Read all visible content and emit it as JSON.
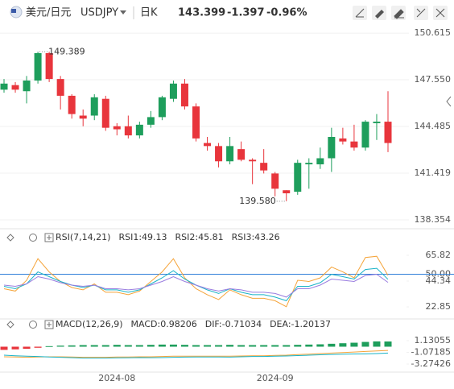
{
  "header": {
    "pair": "美元/日元",
    "symbol": "USDJPY",
    "period": "日K",
    "price": "143.399",
    "change": "-1.397",
    "change_pct": "-0.96%"
  },
  "chart_data": [
    {
      "type": "candlestick",
      "categories": [
        null,
        null,
        null,
        null,
        null,
        null,
        null,
        null,
        null,
        null,
        "2024-08",
        null,
        null,
        null,
        null,
        null,
        null,
        null,
        null,
        null,
        null,
        null,
        null,
        null,
        "2024-09",
        null,
        null,
        null,
        null,
        null,
        null,
        null,
        null,
        null,
        null
      ],
      "open": [
        146.9,
        147.2,
        146.8,
        147.5,
        149.3,
        147.6,
        146.5,
        145.2,
        145.2,
        146.3,
        144.5,
        144.5,
        143.9,
        144.6,
        145.1,
        146.3,
        147.3,
        145.8,
        143.4,
        143.2,
        142.2,
        143.0,
        142.3,
        142.1,
        141.4,
        140.3,
        140.2,
        142.0,
        142.0,
        142.4,
        143.7,
        143.5,
        143.1,
        144.7,
        144.8
      ],
      "high": [
        147.6,
        147.4,
        147.8,
        149.389,
        149.389,
        147.8,
        146.6,
        145.6,
        146.6,
        146.5,
        144.7,
        145.2,
        144.8,
        145.5,
        146.5,
        147.5,
        147.6,
        146.0,
        143.8,
        143.4,
        143.8,
        143.5,
        142.4,
        143.0,
        141.5,
        140.3,
        142.3,
        142.4,
        143.1,
        144.4,
        144.4,
        144.6,
        144.9,
        145.3,
        146.8
      ],
      "low": [
        146.7,
        146.7,
        146.0,
        147.3,
        147.4,
        145.6,
        145.0,
        144.5,
        144.9,
        144.2,
        143.9,
        143.7,
        143.7,
        144.4,
        144.9,
        146.1,
        145.6,
        143.5,
        142.9,
        141.8,
        142.0,
        142.2,
        140.7,
        141.4,
        139.9,
        139.58,
        140.0,
        140.4,
        141.7,
        141.5,
        143.3,
        142.9,
        142.9,
        143.6,
        142.8
      ],
      "close": [
        147.3,
        146.9,
        147.5,
        149.3,
        147.6,
        146.5,
        145.3,
        145.0,
        146.4,
        144.4,
        144.3,
        143.9,
        144.6,
        145.1,
        146.4,
        147.3,
        145.8,
        143.7,
        143.2,
        142.2,
        143.2,
        142.3,
        142.2,
        141.6,
        140.4,
        140.1,
        142.1,
        142.1,
        142.4,
        143.8,
        143.5,
        143.1,
        144.8,
        144.8,
        143.4
      ],
      "up_color": "#1e9e5c",
      "down_color": "#e8353c",
      "ylim": [
        137.88,
        151.2
      ],
      "yticks": [
        {
          "value": 150.615,
          "label": "150.615"
        },
        {
          "value": 147.55,
          "label": "147.550"
        },
        144.485,
        141.419,
        138.354
      ],
      "grid": true,
      "annotations": {
        "high": "149.389",
        "low": "139.580"
      }
    },
    {
      "type": "line",
      "title": "RSI(7,14,21)",
      "series": [
        {
          "name": "RSI1:49.13",
          "color": "#f5a43a",
          "values": [
            38,
            36,
            45,
            63,
            52,
            44,
            39,
            37,
            42,
            35,
            35,
            33,
            36,
            44,
            52,
            63,
            47,
            38,
            33,
            29,
            37,
            33,
            30,
            30,
            28,
            23,
            45,
            44,
            47,
            56,
            52,
            47,
            64,
            65,
            49.13
          ]
        },
        {
          "name": "RSI2:45.81",
          "color": "#19b3c7",
          "values": [
            40,
            38,
            42,
            52,
            48,
            44,
            41,
            39,
            41,
            37,
            37,
            35,
            37,
            42,
            47,
            53,
            46,
            41,
            37,
            34,
            38,
            35,
            33,
            33,
            31,
            28,
            40,
            40,
            43,
            50,
            48,
            46,
            54,
            55,
            45.81
          ]
        },
        {
          "name": "RSI3:43.26",
          "color": "#9a7de0",
          "values": [
            41,
            40,
            42,
            48,
            46,
            43,
            41,
            40,
            41,
            38,
            38,
            37,
            38,
            41,
            44,
            48,
            44,
            41,
            38,
            36,
            38,
            37,
            35,
            35,
            34,
            31,
            38,
            38,
            41,
            46,
            45,
            44,
            49,
            50,
            43.26
          ]
        }
      ],
      "ylim": [
        15.5,
        77.2
      ],
      "yticks": [
        65.82,
        {
          "value": 50,
          "label": "50.00"
        },
        44.34,
        22.85
      ],
      "hline": 50,
      "hline_color": "#2f7fd8"
    },
    {
      "type": "macd",
      "title": "MACD(12,26,9)",
      "histogram": {
        "name": "MACD:0.98206",
        "color": "#9a6fd6",
        "up_color": "#1e9e5c",
        "down_color": "#e8353c",
        "values": [
          -0.6,
          -0.5,
          -0.4,
          -0.2,
          0.1,
          0.2,
          0.25,
          0.3,
          0.3,
          0.3,
          0.35,
          0.3,
          0.3,
          0.35,
          0.4,
          0.4,
          0.35,
          0.3,
          0.3,
          0.3,
          0.35,
          0.3,
          0.3,
          0.3,
          0.3,
          0.3,
          0.35,
          0.4,
          0.45,
          0.55,
          0.65,
          0.75,
          0.9,
          1.0,
          0.98206
        ]
      },
      "series": [
        {
          "name": "DIF:-0.71034",
          "color": "#f5a43a",
          "values": [
            -1.9,
            -1.95,
            -2.0,
            -1.95,
            -1.9,
            -1.9,
            -1.95,
            -2.0,
            -2.0,
            -2.0,
            -1.95,
            -1.95,
            -1.9,
            -1.9,
            -1.85,
            -1.8,
            -1.8,
            -1.8,
            -1.8,
            -1.8,
            -1.8,
            -1.75,
            -1.7,
            -1.7,
            -1.65,
            -1.6,
            -1.5,
            -1.4,
            -1.3,
            -1.2,
            -1.1,
            -1.0,
            -0.9,
            -0.8,
            -0.71034
          ]
        },
        {
          "name": "DEA:-1.20137",
          "color": "#19b3c7",
          "values": [
            -1.6,
            -1.7,
            -1.8,
            -1.85,
            -1.95,
            -2.0,
            -2.07,
            -2.15,
            -2.15,
            -2.15,
            -2.12,
            -2.1,
            -2.05,
            -2.07,
            -2.05,
            -2.0,
            -1.97,
            -1.95,
            -1.95,
            -1.95,
            -1.97,
            -1.9,
            -1.85,
            -1.85,
            -1.8,
            -1.75,
            -1.67,
            -1.6,
            -1.52,
            -1.47,
            -1.42,
            -1.37,
            -1.35,
            -1.3,
            -1.20137
          ]
        }
      ],
      "ylim": [
        -4.79,
        3.87
      ],
      "yticks": [
        1.13055,
        -1.07185,
        -3.27426
      ]
    }
  ]
}
